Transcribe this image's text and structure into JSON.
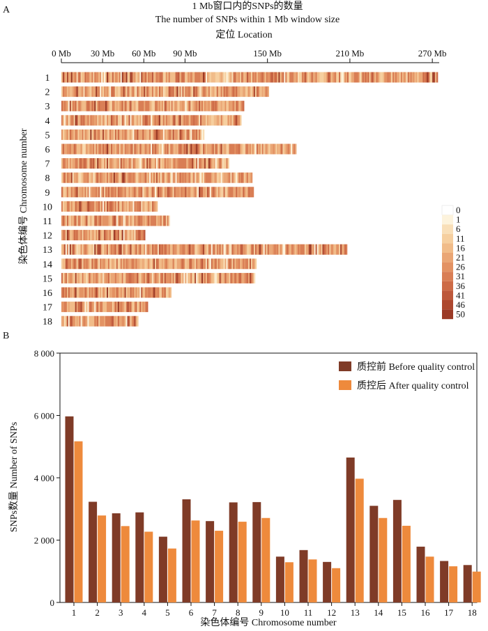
{
  "panel_a": {
    "label": "A",
    "title_cn": "1 Mb窗口内的SNPs的数量",
    "title_en": "The number of SNPs within 1 Mb window size",
    "xlabel": "定位 Location",
    "ylabel": "染色体编号 Chromosome number",
    "ticks": [
      "0 Mb",
      "30 Mb",
      "60 Mb",
      "90 Mb",
      "150 Mb",
      "210 Mb",
      "270 Mb"
    ],
    "legend_labels": [
      "0",
      "1",
      "6",
      "11",
      "16",
      "21",
      "26",
      "31",
      "36",
      "41",
      "46",
      "50"
    ],
    "legend_colors": [
      "#ffffff",
      "#fdf3dc",
      "#f9dfb8",
      "#f6cf9f",
      "#f1bc89",
      "#eaa675",
      "#e39263",
      "#d97e55",
      "#cd6b47",
      "#bd583b",
      "#ad482f",
      "#9b3a26"
    ]
  },
  "panel_b": {
    "label": "B",
    "ylabel": "SNPs数量 Number of SNPs",
    "xlabel": "染色体编号 Chromosome number",
    "yticks": [
      "0",
      "2 000",
      "4 000",
      "6 000",
      "8 000"
    ]
  },
  "chart_data": [
    {
      "type": "heatmap",
      "title": "1 Mb窗口内的SNPs的数量 / The number of SNPs within 1 Mb window size",
      "xlabel": "定位 Location",
      "ylabel": "染色体编号 Chromosome number",
      "x_unit": "Mb",
      "xlim": [
        0,
        275
      ],
      "categories": [
        "1",
        "2",
        "3",
        "4",
        "5",
        "6",
        "7",
        "8",
        "9",
        "10",
        "11",
        "12",
        "13",
        "14",
        "15",
        "16",
        "17",
        "18"
      ],
      "lengths_mb": [
        274,
        151,
        133,
        131,
        104,
        171,
        122,
        139,
        140,
        70,
        79,
        61,
        208,
        142,
        141,
        80,
        63,
        56
      ],
      "color_scale": [
        0,
        50
      ]
    },
    {
      "type": "bar",
      "categories": [
        "1",
        "2",
        "3",
        "4",
        "5",
        "6",
        "7",
        "8",
        "9",
        "10",
        "11",
        "12",
        "13",
        "14",
        "15",
        "16",
        "17",
        "18"
      ],
      "series": [
        {
          "name": "质控前 Before quality control",
          "color": "#7f3b27",
          "values": [
            5970,
            3230,
            2860,
            2890,
            2110,
            3310,
            2610,
            3210,
            3220,
            1470,
            1680,
            1300,
            4650,
            3100,
            3290,
            1790,
            1330,
            1200
          ]
        },
        {
          "name": "质控后 After quality control",
          "color": "#ee8a3c",
          "values": [
            5170,
            2790,
            2450,
            2270,
            1730,
            2630,
            2300,
            2590,
            2710,
            1290,
            1380,
            1100,
            3970,
            2710,
            2460,
            1470,
            1160,
            990
          ]
        }
      ],
      "xlabel": "染色体编号 Chromosome number",
      "ylabel": "SNPs数量 Number of SNPs",
      "ylim": [
        0,
        8000
      ],
      "legend": "top-right"
    }
  ]
}
